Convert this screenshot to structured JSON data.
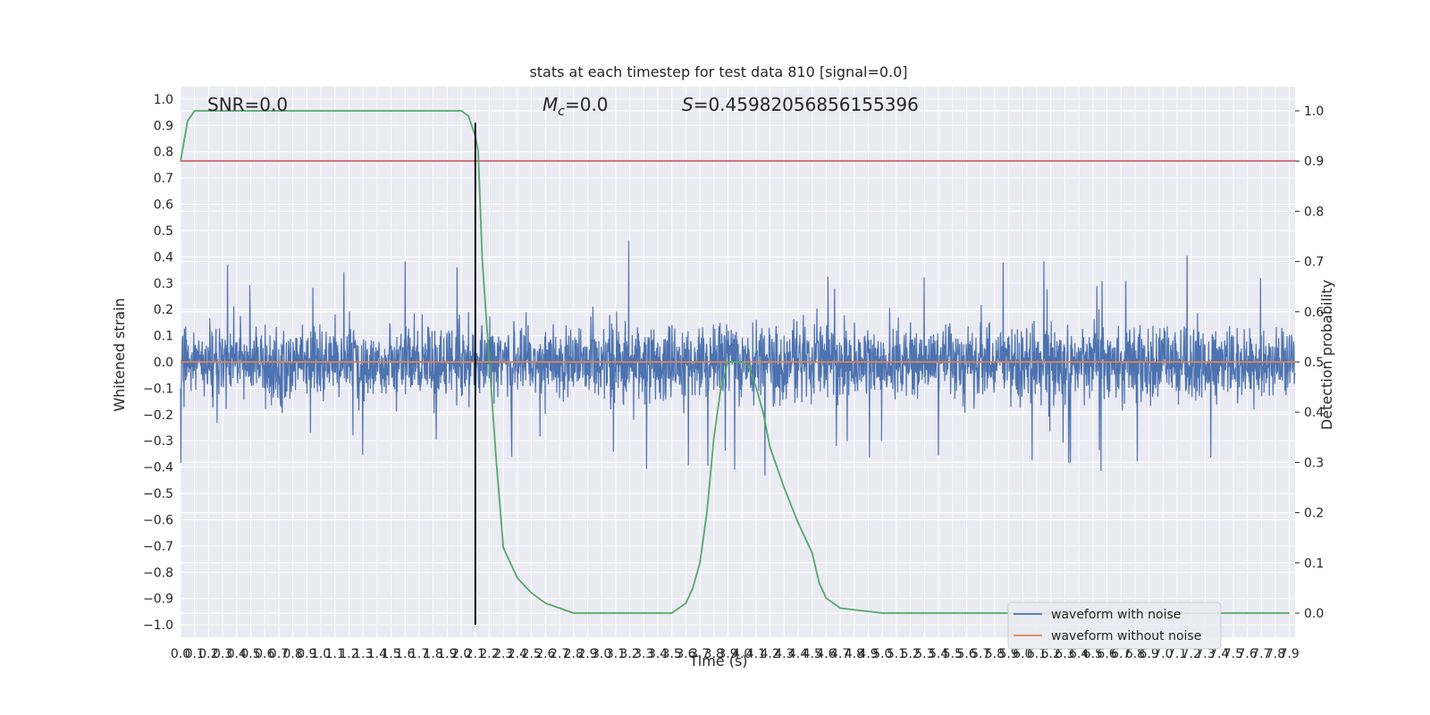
{
  "chart_data": {
    "type": "line",
    "title": "stats at each timestep for test data 810 [signal=0.0]",
    "xlabel": "Time (s)",
    "ylabel": "Whitened strain",
    "y2label": "Detection probability",
    "xlim": [
      0.0,
      7.94
    ],
    "ylim": [
      -1.0,
      1.0
    ],
    "y2lim": [
      -0.048,
      1.048
    ],
    "x_ticks": [
      0.0,
      0.1,
      0.2,
      0.3,
      0.4,
      0.5,
      0.6,
      0.7,
      0.8,
      0.9,
      1.0,
      1.1,
      1.2,
      1.3,
      1.4,
      1.5,
      1.6,
      1.7,
      1.8,
      1.9,
      2.0,
      2.1,
      2.2,
      2.3,
      2.4,
      2.5,
      2.6,
      2.7,
      2.8,
      2.9,
      3.0,
      3.1,
      3.2,
      3.3,
      3.4,
      3.5,
      3.6,
      3.7,
      3.8,
      3.9,
      4.0,
      4.1,
      4.2,
      4.3,
      4.4,
      4.5,
      4.6,
      4.7,
      4.8,
      4.9,
      5.0,
      5.1,
      5.2,
      5.3,
      5.4,
      5.5,
      5.6,
      5.7,
      5.8,
      5.9,
      6.0,
      6.1,
      6.2,
      6.3,
      6.4,
      6.5,
      6.6,
      6.7,
      6.8,
      6.9,
      7.0,
      7.1,
      7.2,
      7.3,
      7.4,
      7.5,
      7.6,
      7.7,
      7.8,
      7.9
    ],
    "y_ticks": [
      -1.0,
      -0.9,
      -0.8,
      -0.7,
      -0.6,
      -0.5,
      -0.4,
      -0.3,
      -0.2,
      -0.1,
      0.0,
      0.1,
      0.2,
      0.3,
      0.4,
      0.5,
      0.6,
      0.7,
      0.8,
      0.9,
      1.0
    ],
    "y2_ticks": [
      0.0,
      0.1,
      0.2,
      0.3,
      0.4,
      0.5,
      0.6,
      0.7,
      0.8,
      0.9,
      1.0
    ],
    "grid": true,
    "legend_position": "bottom-right",
    "series": [
      {
        "name": "waveform with noise",
        "color": "#4c72b0",
        "axis": "left",
        "kind": "noise",
        "typical_envelope": [
          -0.45,
          0.42
        ],
        "peak_range": [
          -1.0,
          0.91
        ]
      },
      {
        "name": "waveform without noise",
        "color": "#dd8452",
        "axis": "left",
        "kind": "constant",
        "value": 0.0
      }
    ],
    "detection_probability": {
      "color": "#55a868",
      "axis": "right",
      "x": [
        0.0,
        0.05,
        0.1,
        0.2,
        0.4,
        1.0,
        1.5,
        2.0,
        2.05,
        2.1,
        2.12,
        2.15,
        2.2,
        2.25,
        2.3,
        2.4,
        2.5,
        2.6,
        2.7,
        2.8,
        3.0,
        3.2,
        3.4,
        3.5,
        3.55,
        3.6,
        3.65,
        3.7,
        3.75,
        3.8,
        3.85,
        3.9,
        3.95,
        4.0,
        4.05,
        4.1,
        4.15,
        4.2,
        4.3,
        4.4,
        4.5,
        4.55,
        4.6,
        4.7,
        5.0,
        6.0,
        7.0,
        7.9
      ],
      "y": [
        0.9,
        0.98,
        1.0,
        1.0,
        1.0,
        1.0,
        1.0,
        1.0,
        0.99,
        0.95,
        0.92,
        0.7,
        0.5,
        0.3,
        0.13,
        0.07,
        0.04,
        0.02,
        0.01,
        0.0,
        0.0,
        0.0,
        0.0,
        0.0,
        0.01,
        0.02,
        0.05,
        0.1,
        0.2,
        0.35,
        0.45,
        0.5,
        0.5,
        0.5,
        0.49,
        0.45,
        0.4,
        0.33,
        0.25,
        0.18,
        0.12,
        0.06,
        0.03,
        0.01,
        0.0,
        0.0,
        0.0,
        0.0
      ]
    },
    "threshold_line": {
      "color": "#c44e52",
      "value": 0.9,
      "axis": "right"
    },
    "vertical_marker": {
      "color": "#000000",
      "x": 2.1,
      "y_range": [
        -1.0,
        0.91
      ]
    },
    "annotations": [
      "SNR=0.0",
      "M",
      "c",
      "=0.0",
      "S",
      "=0.45982056856155396"
    ]
  }
}
